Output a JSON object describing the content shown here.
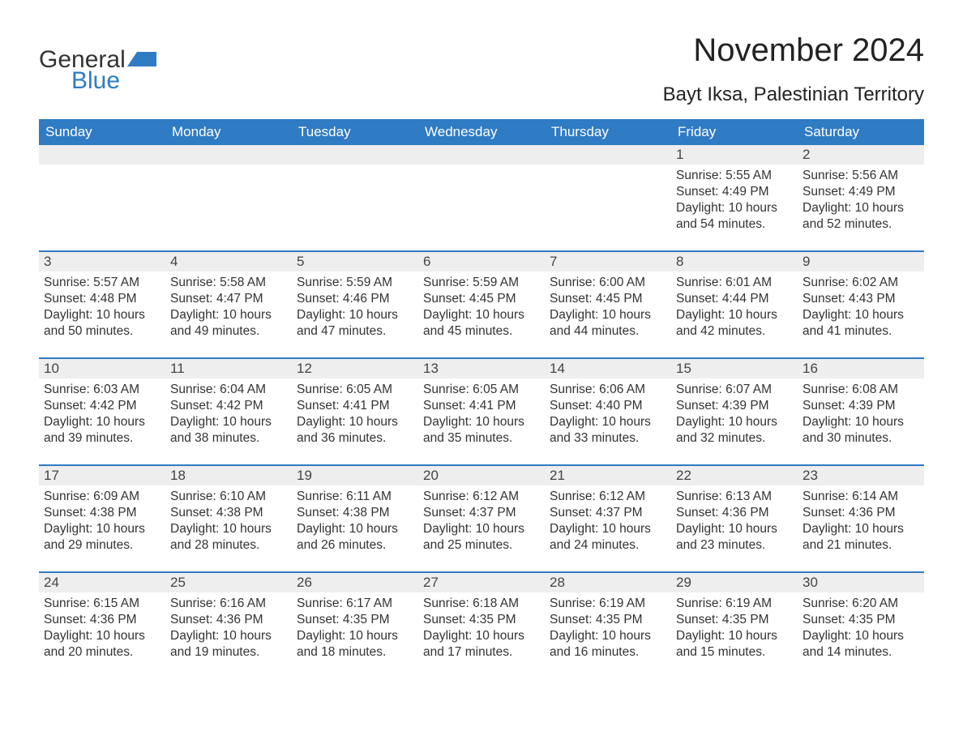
{
  "logo": {
    "text1": "General",
    "text2": "Blue"
  },
  "title": "November 2024",
  "location": "Bayt Iksa, Palestinian Territory",
  "colors": {
    "header_bg": "#2f7bc4",
    "header_text": "#ffffff",
    "daynum_bg": "#eeeeee",
    "border": "#2f7bc4",
    "body_text": "#333333"
  },
  "weekdays": [
    "Sunday",
    "Monday",
    "Tuesday",
    "Wednesday",
    "Thursday",
    "Friday",
    "Saturday"
  ],
  "weeks": [
    [
      null,
      null,
      null,
      null,
      null,
      {
        "n": "1",
        "sunrise": "5:55 AM",
        "sunset": "4:49 PM",
        "daylight": "10 hours and 54 minutes."
      },
      {
        "n": "2",
        "sunrise": "5:56 AM",
        "sunset": "4:49 PM",
        "daylight": "10 hours and 52 minutes."
      }
    ],
    [
      {
        "n": "3",
        "sunrise": "5:57 AM",
        "sunset": "4:48 PM",
        "daylight": "10 hours and 50 minutes."
      },
      {
        "n": "4",
        "sunrise": "5:58 AM",
        "sunset": "4:47 PM",
        "daylight": "10 hours and 49 minutes."
      },
      {
        "n": "5",
        "sunrise": "5:59 AM",
        "sunset": "4:46 PM",
        "daylight": "10 hours and 47 minutes."
      },
      {
        "n": "6",
        "sunrise": "5:59 AM",
        "sunset": "4:45 PM",
        "daylight": "10 hours and 45 minutes."
      },
      {
        "n": "7",
        "sunrise": "6:00 AM",
        "sunset": "4:45 PM",
        "daylight": "10 hours and 44 minutes."
      },
      {
        "n": "8",
        "sunrise": "6:01 AM",
        "sunset": "4:44 PM",
        "daylight": "10 hours and 42 minutes."
      },
      {
        "n": "9",
        "sunrise": "6:02 AM",
        "sunset": "4:43 PM",
        "daylight": "10 hours and 41 minutes."
      }
    ],
    [
      {
        "n": "10",
        "sunrise": "6:03 AM",
        "sunset": "4:42 PM",
        "daylight": "10 hours and 39 minutes."
      },
      {
        "n": "11",
        "sunrise": "6:04 AM",
        "sunset": "4:42 PM",
        "daylight": "10 hours and 38 minutes."
      },
      {
        "n": "12",
        "sunrise": "6:05 AM",
        "sunset": "4:41 PM",
        "daylight": "10 hours and 36 minutes."
      },
      {
        "n": "13",
        "sunrise": "6:05 AM",
        "sunset": "4:41 PM",
        "daylight": "10 hours and 35 minutes."
      },
      {
        "n": "14",
        "sunrise": "6:06 AM",
        "sunset": "4:40 PM",
        "daylight": "10 hours and 33 minutes."
      },
      {
        "n": "15",
        "sunrise": "6:07 AM",
        "sunset": "4:39 PM",
        "daylight": "10 hours and 32 minutes."
      },
      {
        "n": "16",
        "sunrise": "6:08 AM",
        "sunset": "4:39 PM",
        "daylight": "10 hours and 30 minutes."
      }
    ],
    [
      {
        "n": "17",
        "sunrise": "6:09 AM",
        "sunset": "4:38 PM",
        "daylight": "10 hours and 29 minutes."
      },
      {
        "n": "18",
        "sunrise": "6:10 AM",
        "sunset": "4:38 PM",
        "daylight": "10 hours and 28 minutes."
      },
      {
        "n": "19",
        "sunrise": "6:11 AM",
        "sunset": "4:38 PM",
        "daylight": "10 hours and 26 minutes."
      },
      {
        "n": "20",
        "sunrise": "6:12 AM",
        "sunset": "4:37 PM",
        "daylight": "10 hours and 25 minutes."
      },
      {
        "n": "21",
        "sunrise": "6:12 AM",
        "sunset": "4:37 PM",
        "daylight": "10 hours and 24 minutes."
      },
      {
        "n": "22",
        "sunrise": "6:13 AM",
        "sunset": "4:36 PM",
        "daylight": "10 hours and 23 minutes."
      },
      {
        "n": "23",
        "sunrise": "6:14 AM",
        "sunset": "4:36 PM",
        "daylight": "10 hours and 21 minutes."
      }
    ],
    [
      {
        "n": "24",
        "sunrise": "6:15 AM",
        "sunset": "4:36 PM",
        "daylight": "10 hours and 20 minutes."
      },
      {
        "n": "25",
        "sunrise": "6:16 AM",
        "sunset": "4:36 PM",
        "daylight": "10 hours and 19 minutes."
      },
      {
        "n": "26",
        "sunrise": "6:17 AM",
        "sunset": "4:35 PM",
        "daylight": "10 hours and 18 minutes."
      },
      {
        "n": "27",
        "sunrise": "6:18 AM",
        "sunset": "4:35 PM",
        "daylight": "10 hours and 17 minutes."
      },
      {
        "n": "28",
        "sunrise": "6:19 AM",
        "sunset": "4:35 PM",
        "daylight": "10 hours and 16 minutes."
      },
      {
        "n": "29",
        "sunrise": "6:19 AM",
        "sunset": "4:35 PM",
        "daylight": "10 hours and 15 minutes."
      },
      {
        "n": "30",
        "sunrise": "6:20 AM",
        "sunset": "4:35 PM",
        "daylight": "10 hours and 14 minutes."
      }
    ]
  ],
  "labels": {
    "sunrise": "Sunrise:",
    "sunset": "Sunset:",
    "daylight": "Daylight:"
  }
}
